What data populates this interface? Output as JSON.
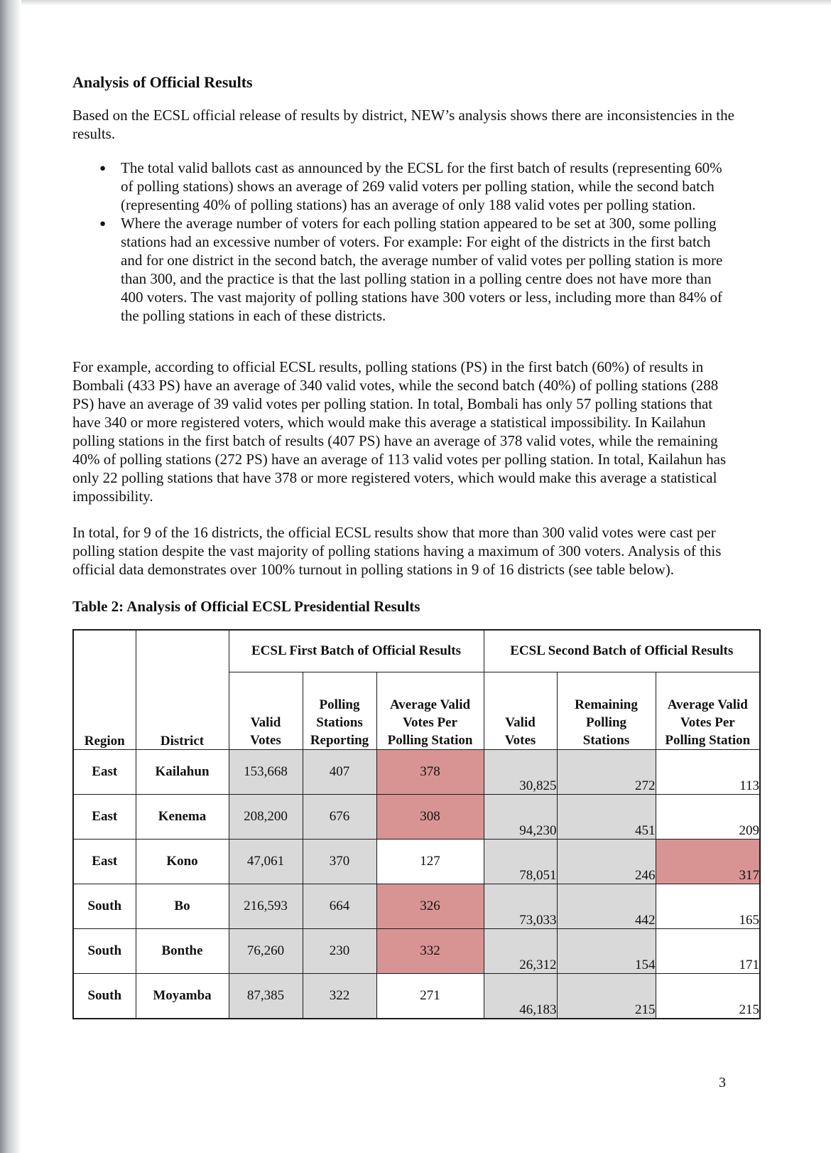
{
  "doc": {
    "heading": "Analysis of Official Results",
    "intro": "Based on the ECSL official release of results by district, NEW’s analysis shows there are inconsistencies in the results.",
    "bullet_glyph": "●",
    "bullets": [
      "The total valid ballots cast as announced by the ECSL for the first batch of results (representing 60% of polling stations) shows an average of 269 valid voters per polling station, while the second batch (representing 40% of polling stations) has an average of only 188 valid votes per polling station.",
      "Where the average number of voters for each polling station appeared to be set at 300, some polling stations had an excessive number of voters. For example: For eight of the districts in the first batch and for one district in the second batch, the average number of valid votes per polling station is more than 300, and the practice is that the last polling station in a polling centre does not have more than 400 voters. The vast majority of polling stations have 300 voters or less, including more than 84% of the polling stations in each of these districts."
    ],
    "para2": "For example, according to official ECSL results, polling stations (PS) in the first batch (60%) of results in Bombali (433 PS) have an average of 340 valid votes, while the second batch (40%) of polling stations (288 PS) have an average of 39 valid votes per polling station. In total, Bombali has only 57 polling stations that have 340 or more registered voters, which would make this average a statistical impossibility. In Kailahun polling stations in the first batch of results (407 PS) have an average of 378 valid votes, while the remaining 40% of polling stations (272 PS) have an average of 113 valid votes per polling station. In total, Kailahun has only 22 polling stations that have 378 or more registered voters, which would make this average a statistical impossibility.",
    "para3": "In total, for 9 of the 16 districts, the official ECSL results show that more than 300 valid votes were cast per polling station despite the vast majority of polling stations having a maximum of 300 voters. Analysis of this official data demonstrates over 100% turnout in polling stations in 9 of 16 districts (see table below).",
    "table_caption": "Table 2: Analysis of Official ECSL Presidential Results",
    "page_number": "3"
  },
  "colors": {
    "highlight_red": "#d89493",
    "cell_gray": "#d9d9d9",
    "border": "#1a1a1a"
  },
  "table": {
    "group_headers": {
      "first_batch": "ECSL First Batch of Official Results",
      "second_batch": "ECSL Second Batch of Official Results"
    },
    "row_headers": {
      "region": "Region",
      "district": "District"
    },
    "sub_headers": {
      "b1_valid": "Valid\nVotes",
      "b1_stations": "Polling\nStations\nReporting",
      "b1_avg": "Average Valid\nVotes Per\nPolling Station",
      "b2_valid": "Valid\nVotes",
      "b2_stations": "Remaining\nPolling\nStations",
      "b2_avg": "Average Valid\nVotes Per\nPolling Station"
    },
    "rows": [
      {
        "region": "East",
        "district": "Kailahun",
        "b1_valid": "153,668",
        "b1_stations": "407",
        "b1_avg": "378",
        "b1_avg_red": true,
        "b2_valid": "30,825",
        "b2_stations": "272",
        "b2_avg": "113",
        "b2_avg_red": false
      },
      {
        "region": "East",
        "district": "Kenema",
        "b1_valid": "208,200",
        "b1_stations": "676",
        "b1_avg": "308",
        "b1_avg_red": true,
        "b2_valid": "94,230",
        "b2_stations": "451",
        "b2_avg": "209",
        "b2_avg_red": false
      },
      {
        "region": "East",
        "district": "Kono",
        "b1_valid": "47,061",
        "b1_stations": "370",
        "b1_avg": "127",
        "b1_avg_red": false,
        "b2_valid": "78,051",
        "b2_stations": "246",
        "b2_avg": "317",
        "b2_avg_red": true
      },
      {
        "region": "South",
        "district": "Bo",
        "b1_valid": "216,593",
        "b1_stations": "664",
        "b1_avg": "326",
        "b1_avg_red": true,
        "b2_valid": "73,033",
        "b2_stations": "442",
        "b2_avg": "165",
        "b2_avg_red": false
      },
      {
        "region": "South",
        "district": "Bonthe",
        "b1_valid": "76,260",
        "b1_stations": "230",
        "b1_avg": "332",
        "b1_avg_red": true,
        "b2_valid": "26,312",
        "b2_stations": "154",
        "b2_avg": "171",
        "b2_avg_red": false
      },
      {
        "region": "South",
        "district": "Moyamba",
        "b1_valid": "87,385",
        "b1_stations": "322",
        "b1_avg": "271",
        "b1_avg_red": false,
        "b2_valid": "46,183",
        "b2_stations": "215",
        "b2_avg": "215",
        "b2_avg_red": false
      }
    ]
  }
}
